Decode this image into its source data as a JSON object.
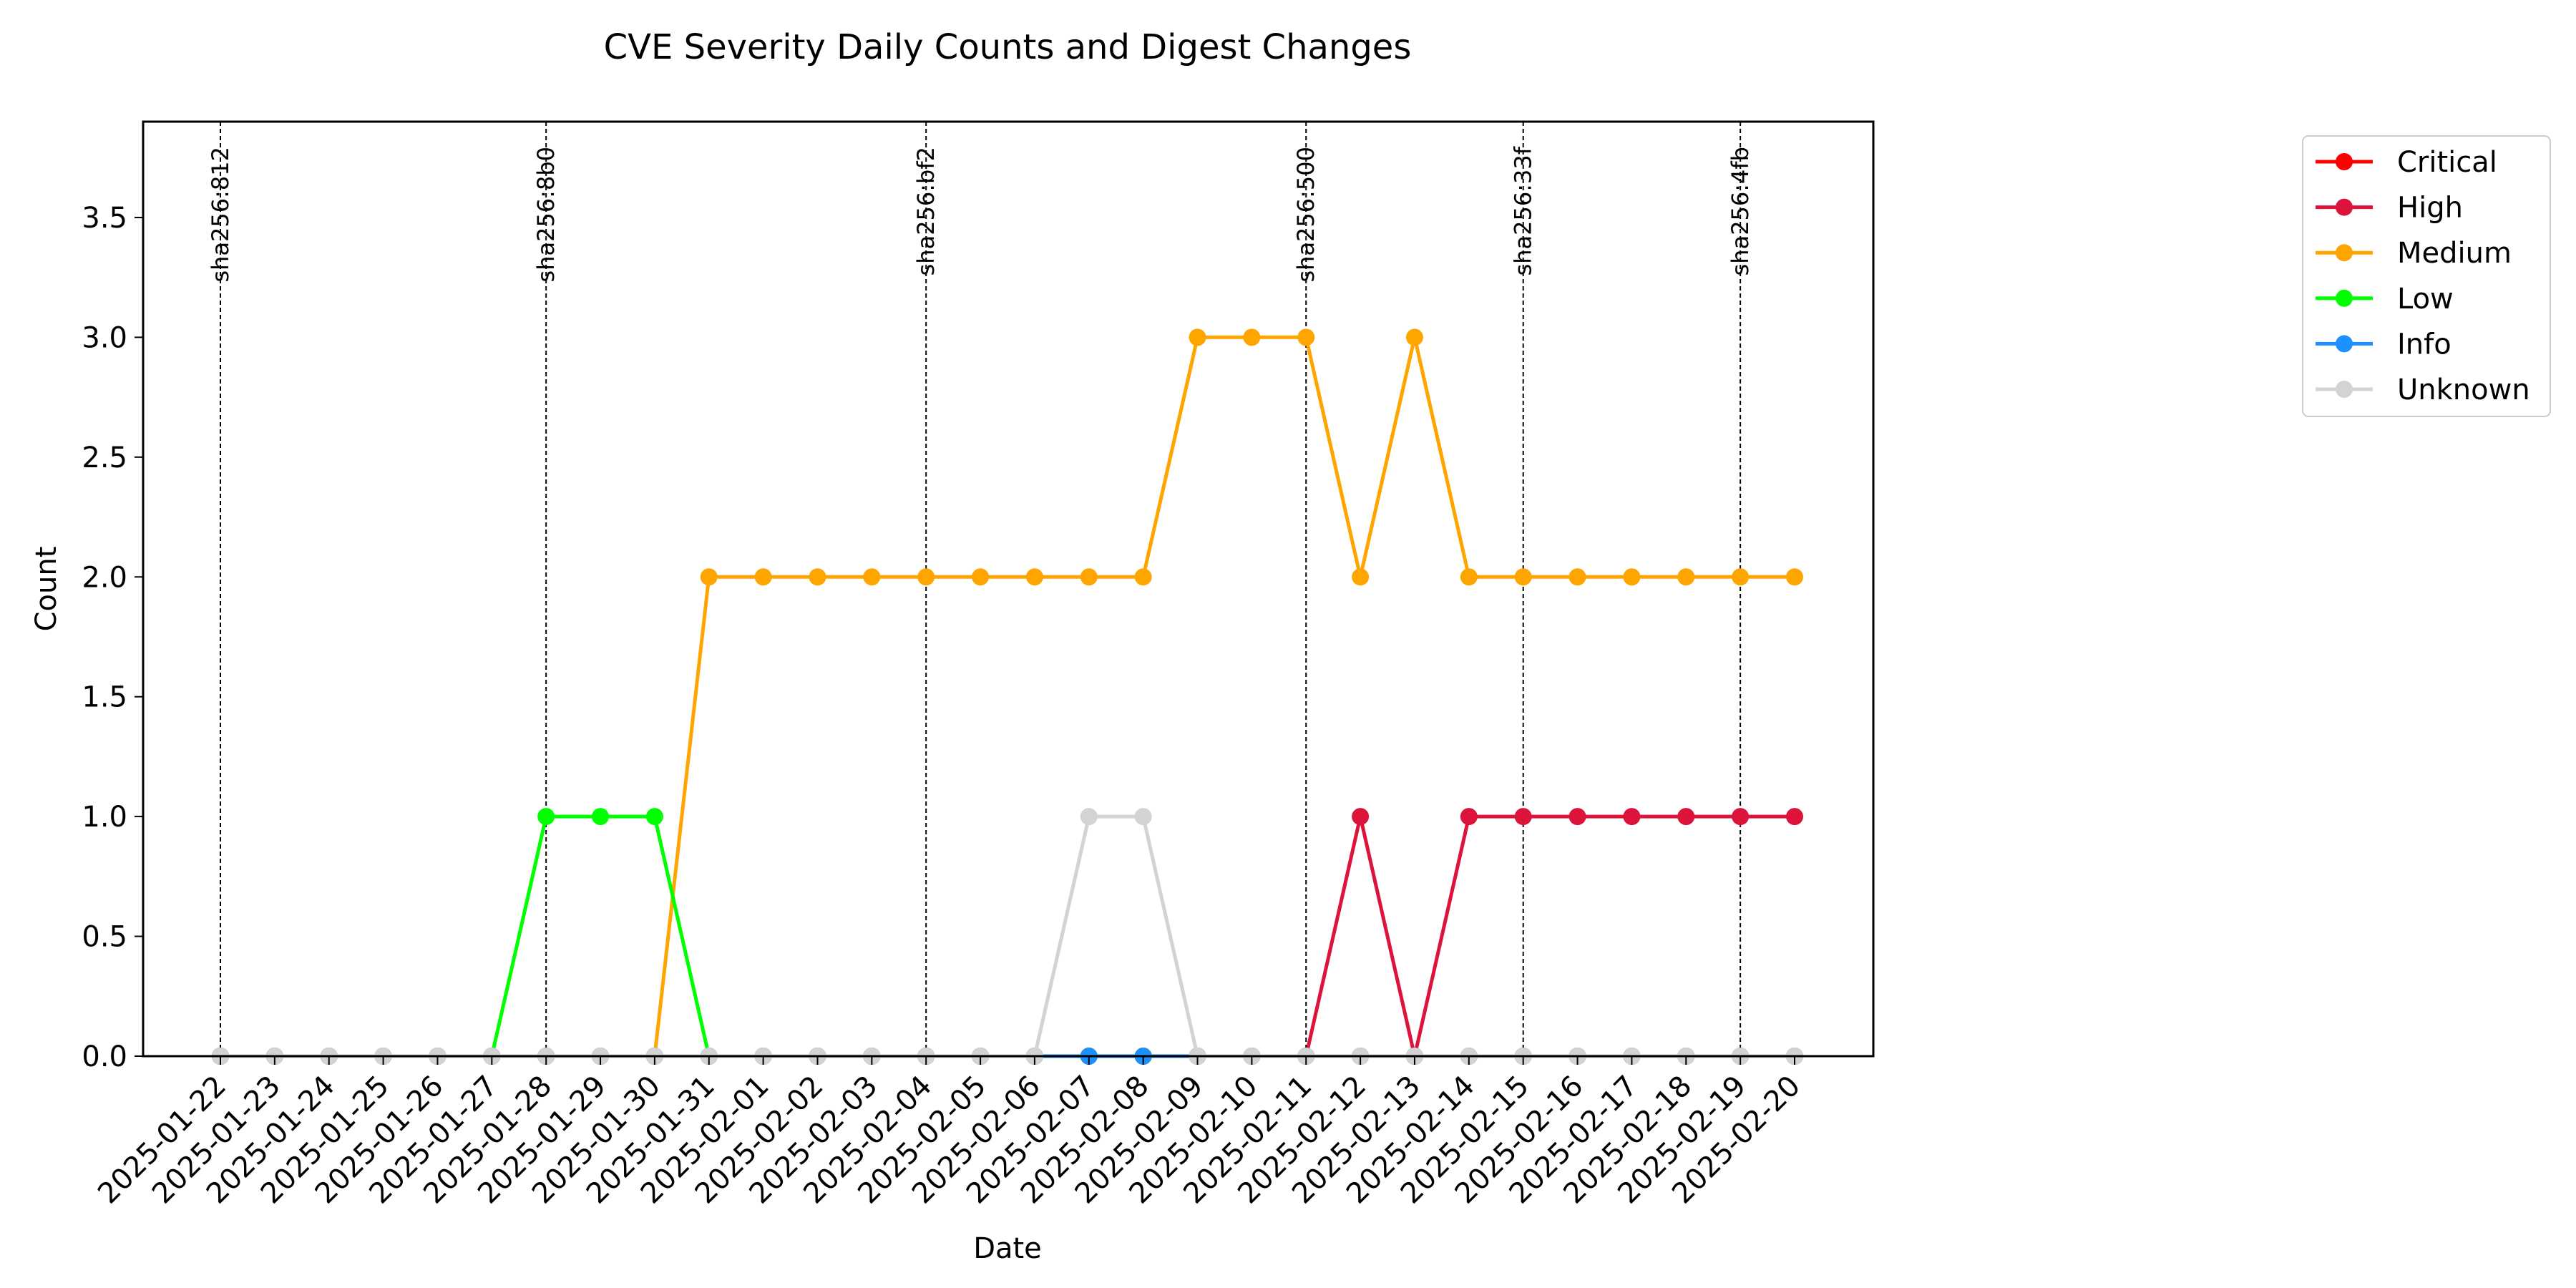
{
  "chart_data": {
    "type": "line",
    "title": "CVE Severity Daily Counts and Digest Changes",
    "xlabel": "Date",
    "ylabel": "Count",
    "ylim": [
      0,
      3.9
    ],
    "yticks": [
      "0.0",
      "0.5",
      "1.0",
      "1.5",
      "2.0",
      "2.5",
      "3.0",
      "3.5"
    ],
    "grid": false,
    "legend_position": "outside right",
    "categories": [
      "2025-01-22",
      "2025-01-23",
      "2025-01-24",
      "2025-01-25",
      "2025-01-26",
      "2025-01-27",
      "2025-01-28",
      "2025-01-29",
      "2025-01-30",
      "2025-01-31",
      "2025-02-01",
      "2025-02-02",
      "2025-02-03",
      "2025-02-04",
      "2025-02-05",
      "2025-02-06",
      "2025-02-07",
      "2025-02-08",
      "2025-02-09",
      "2025-02-10",
      "2025-02-11",
      "2025-02-12",
      "2025-02-13",
      "2025-02-14",
      "2025-02-15",
      "2025-02-16",
      "2025-02-17",
      "2025-02-18",
      "2025-02-19",
      "2025-02-20"
    ],
    "series": [
      {
        "name": "Critical",
        "color": "#ff0000",
        "values": [
          0,
          0,
          0,
          0,
          0,
          0,
          0,
          0,
          0,
          0,
          0,
          0,
          0,
          0,
          0,
          0,
          0,
          0,
          0,
          0,
          0,
          0,
          0,
          0,
          0,
          0,
          0,
          0,
          0,
          0
        ]
      },
      {
        "name": "High",
        "color": "#dc143c",
        "values": [
          0,
          0,
          0,
          0,
          0,
          0,
          0,
          0,
          0,
          0,
          0,
          0,
          0,
          0,
          0,
          0,
          0,
          0,
          0,
          0,
          0,
          1,
          0,
          1,
          1,
          1,
          1,
          1,
          1,
          1
        ]
      },
      {
        "name": "Medium",
        "color": "#ffa500",
        "values": [
          0,
          0,
          0,
          0,
          0,
          0,
          0,
          0,
          0,
          2,
          2,
          2,
          2,
          2,
          2,
          2,
          2,
          2,
          3,
          3,
          3,
          2,
          3,
          2,
          2,
          2,
          2,
          2,
          2,
          2
        ]
      },
      {
        "name": "Low",
        "color": "#00ff00",
        "values": [
          0,
          0,
          0,
          0,
          0,
          0,
          1,
          1,
          1,
          0,
          0,
          0,
          0,
          0,
          0,
          0,
          0,
          0,
          0,
          0,
          0,
          0,
          0,
          0,
          0,
          0,
          0,
          0,
          0,
          0
        ]
      },
      {
        "name": "Info",
        "color": "#1e90ff",
        "values": [
          0,
          0,
          0,
          0,
          0,
          0,
          0,
          0,
          0,
          0,
          0,
          0,
          0,
          0,
          0,
          0,
          0,
          0,
          0,
          0,
          0,
          0,
          0,
          0,
          0,
          0,
          0,
          0,
          0,
          0
        ]
      },
      {
        "name": "Unknown",
        "color": "#d3d3d3",
        "values": [
          0,
          0,
          0,
          0,
          0,
          0,
          0,
          0,
          0,
          0,
          0,
          0,
          0,
          0,
          0,
          0,
          1,
          1,
          0,
          0,
          0,
          0,
          0,
          0,
          0,
          0,
          0,
          0,
          0,
          0
        ]
      }
    ],
    "annotations": [
      {
        "x": "2025-01-22",
        "label": "sha256:812"
      },
      {
        "x": "2025-01-28",
        "label": "sha256:8b0"
      },
      {
        "x": "2025-02-04",
        "label": "sha256:bf2"
      },
      {
        "x": "2025-02-11",
        "label": "sha256:500"
      },
      {
        "x": "2025-02-15",
        "label": "sha256:33f"
      },
      {
        "x": "2025-02-19",
        "label": "sha256:4fb"
      }
    ]
  }
}
